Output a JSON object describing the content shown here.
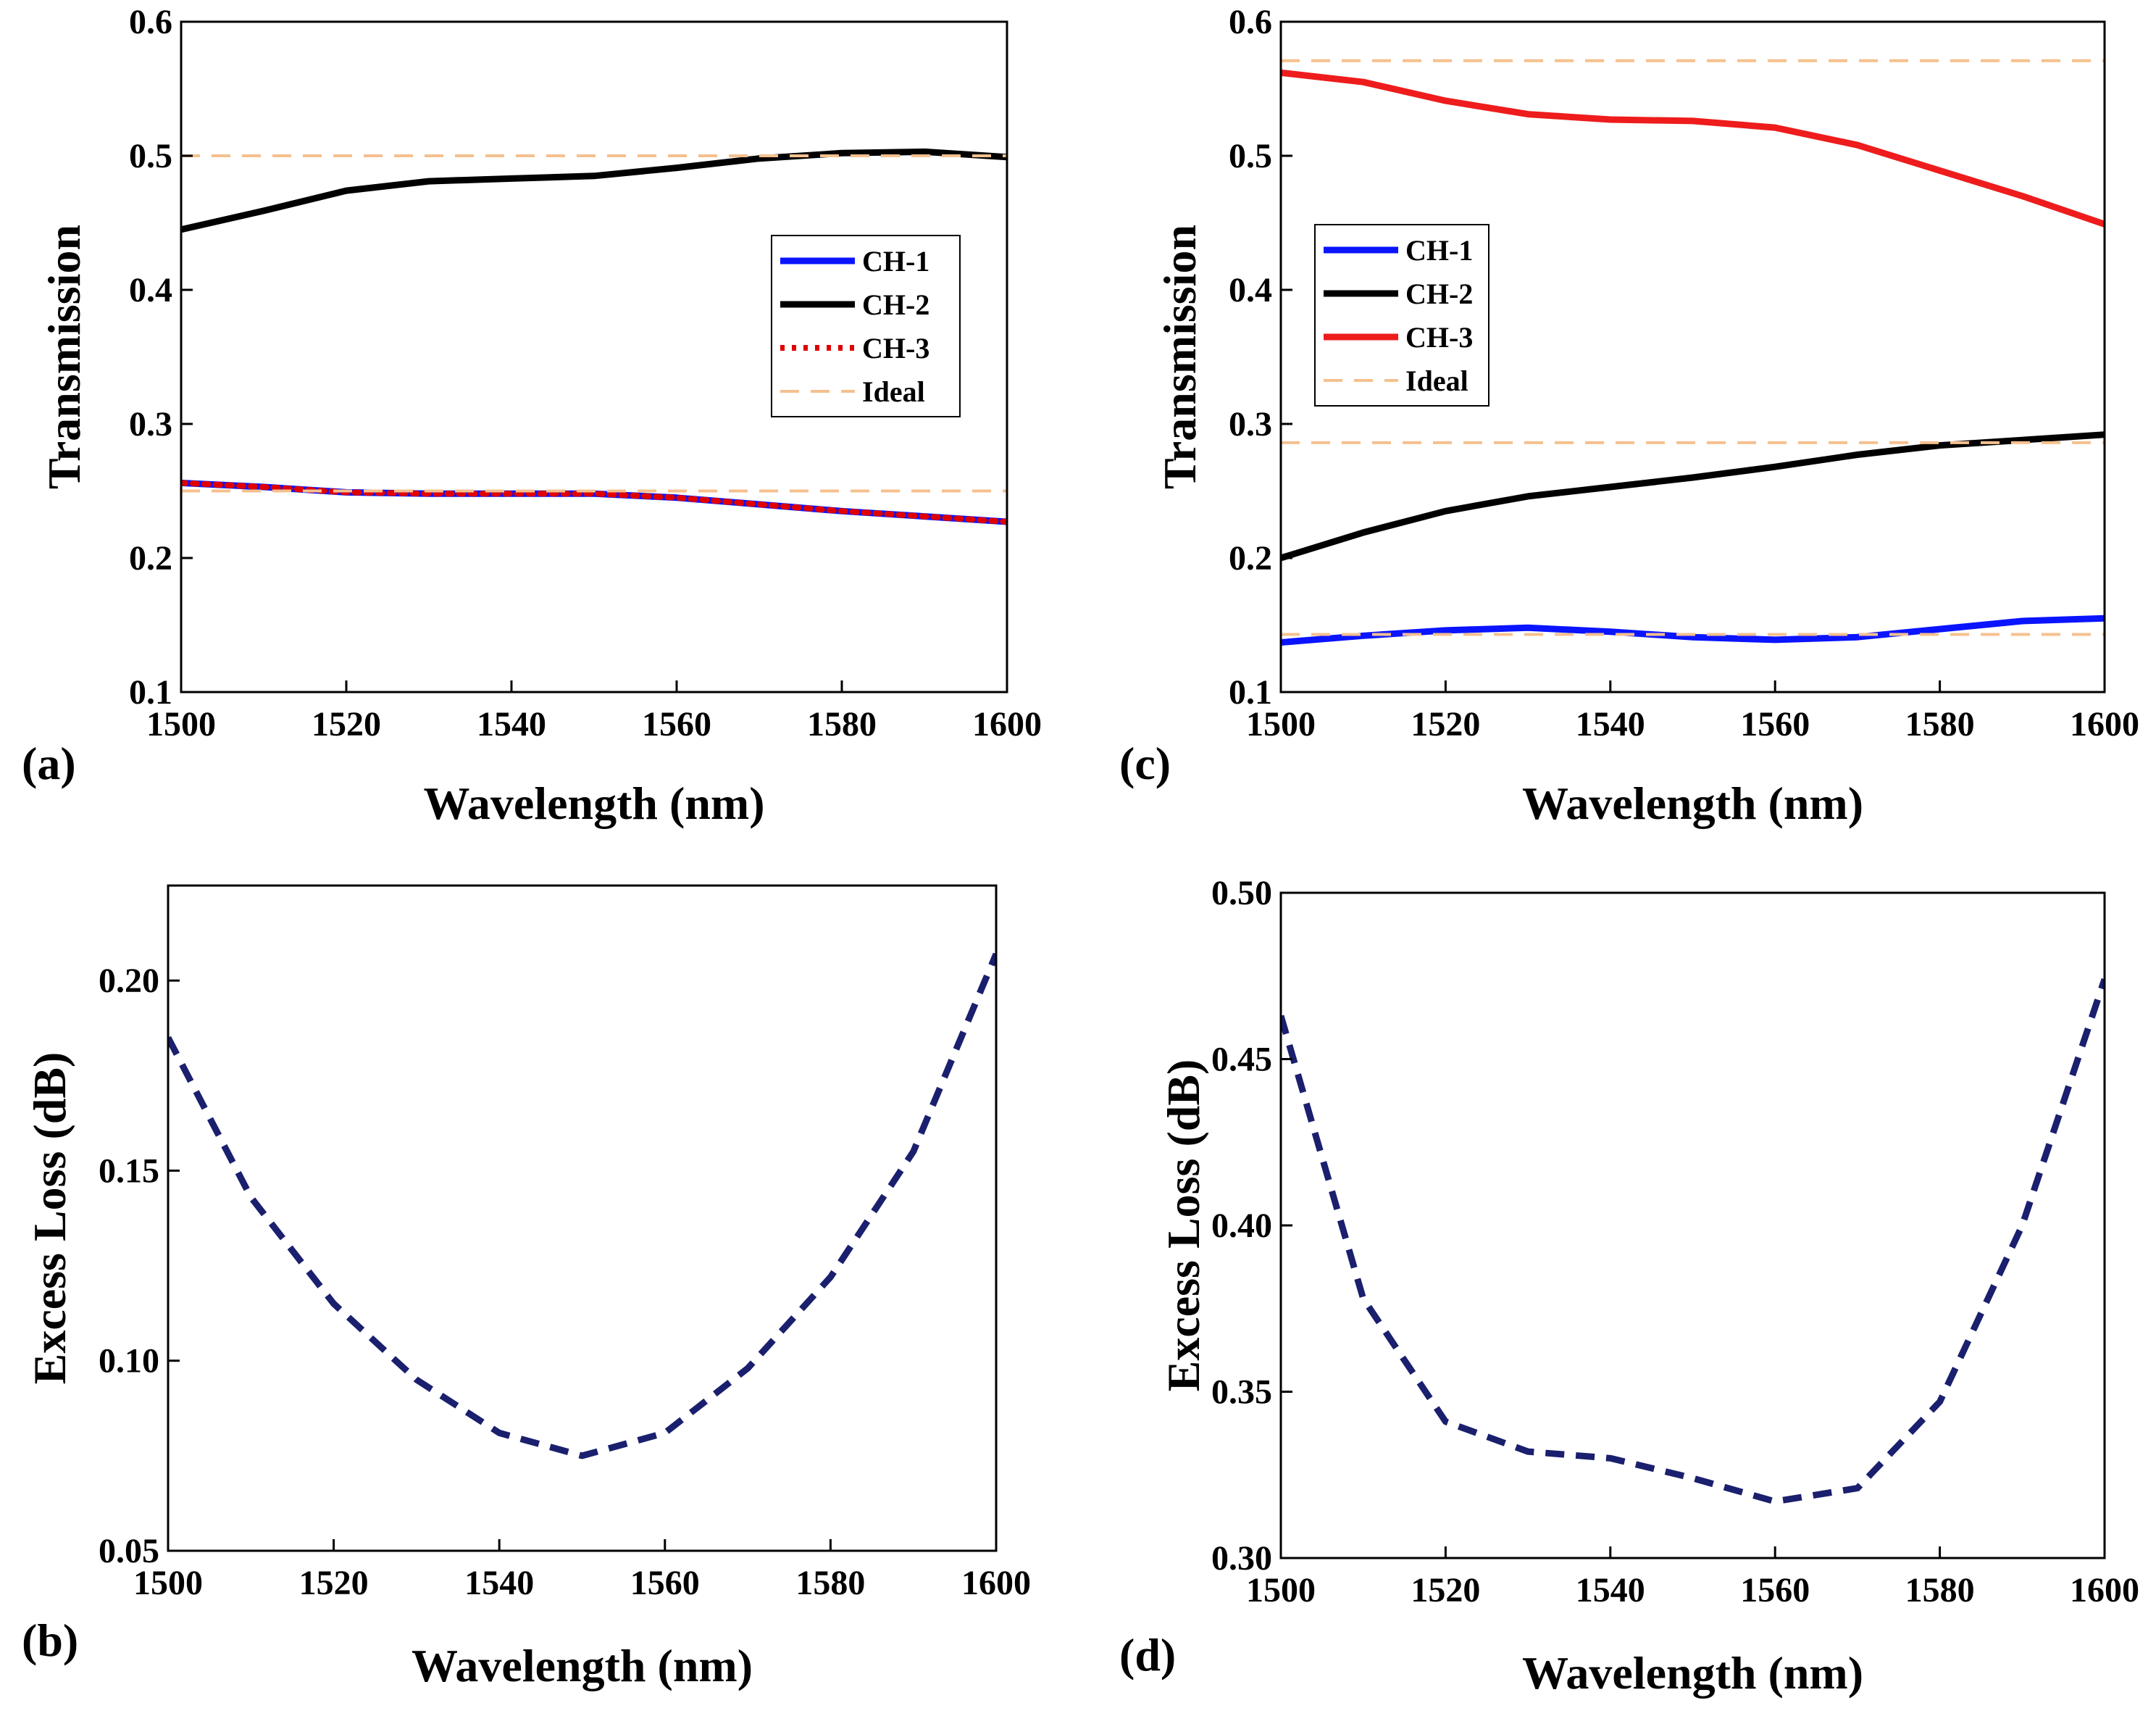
{
  "figure": {
    "panels": [
      "a",
      "b",
      "c",
      "d"
    ]
  },
  "chart_data": [
    {
      "id": "a",
      "panel_label": "(a)",
      "type": "line",
      "xlabel": "Wavelength (nm)",
      "ylabel": "Transmission",
      "xlim": [
        1500,
        1600
      ],
      "ylim": [
        0.1,
        0.6
      ],
      "xticks": [
        1500,
        1520,
        1540,
        1560,
        1580,
        1600
      ],
      "yticks": [
        0.1,
        0.2,
        0.3,
        0.4,
        0.5,
        0.6
      ],
      "xtick_labels": [
        "1500",
        "1520",
        "1540",
        "1560",
        "1580",
        "1600"
      ],
      "ytick_labels": [
        "0.1",
        "0.2",
        "0.3",
        "0.4",
        "0.5",
        "0.6"
      ],
      "legend_position": "right-middle",
      "series": [
        {
          "name": "CH-1",
          "style": "solid",
          "color": "#0a14ff",
          "x": [
            1500,
            1510,
            1520,
            1530,
            1540,
            1550,
            1560,
            1570,
            1580,
            1590,
            1600
          ],
          "y": [
            0.256,
            0.253,
            0.249,
            0.248,
            0.248,
            0.248,
            0.245,
            0.24,
            0.235,
            0.231,
            0.227
          ]
        },
        {
          "name": "CH-2",
          "style": "solid",
          "color": "#000000",
          "x": [
            1500,
            1510,
            1520,
            1530,
            1540,
            1550,
            1560,
            1570,
            1580,
            1590,
            1600
          ],
          "y": [
            0.445,
            0.459,
            0.474,
            0.481,
            0.483,
            0.485,
            0.491,
            0.498,
            0.502,
            0.503,
            0.499
          ]
        },
        {
          "name": "CH-3",
          "style": "dotted",
          "color": "#e00000",
          "x": [
            1500,
            1510,
            1520,
            1530,
            1540,
            1550,
            1560,
            1570,
            1580,
            1590,
            1600
          ],
          "y": [
            0.256,
            0.253,
            0.249,
            0.248,
            0.248,
            0.248,
            0.245,
            0.24,
            0.235,
            0.231,
            0.227
          ]
        },
        {
          "name": "Ideal",
          "style": "dashed",
          "color": "#f5c08e",
          "legend": true,
          "x": [
            1500,
            1600
          ],
          "y": [
            0.5,
            0.5
          ]
        },
        {
          "name": "Ideal",
          "style": "dashed",
          "color": "#f5c08e",
          "legend": false,
          "x": [
            1500,
            1600
          ],
          "y": [
            0.25,
            0.25
          ]
        }
      ]
    },
    {
      "id": "b",
      "panel_label": "(b)",
      "type": "line",
      "xlabel": "Wavelength (nm)",
      "ylabel": "Excess Loss (dB)",
      "xlim": [
        1500,
        1600
      ],
      "ylim": [
        0.05,
        0.225
      ],
      "xticks": [
        1500,
        1520,
        1540,
        1560,
        1580,
        1600
      ],
      "yticks": [
        0.05,
        0.1,
        0.15,
        0.2
      ],
      "xtick_labels": [
        "1500",
        "1520",
        "1540",
        "1560",
        "1580",
        "1600"
      ],
      "ytick_labels": [
        "0.05",
        "0.10",
        "0.15",
        "0.20"
      ],
      "legend_position": "none",
      "series": [
        {
          "name": "Excess Loss",
          "style": "dashed",
          "color": "#1a1f6e",
          "x": [
            1500,
            1510,
            1520,
            1530,
            1540,
            1550,
            1560,
            1570,
            1580,
            1590,
            1600
          ],
          "y": [
            0.185,
            0.143,
            0.115,
            0.095,
            0.081,
            0.075,
            0.081,
            0.098,
            0.122,
            0.155,
            0.207
          ]
        }
      ]
    },
    {
      "id": "c",
      "panel_label": "(c)",
      "type": "line",
      "xlabel": "Wavelength (nm)",
      "ylabel": "Transmission",
      "xlim": [
        1500,
        1600
      ],
      "ylim": [
        0.1,
        0.6
      ],
      "xticks": [
        1500,
        1520,
        1540,
        1560,
        1580,
        1600
      ],
      "yticks": [
        0.1,
        0.2,
        0.3,
        0.4,
        0.5,
        0.6
      ],
      "xtick_labels": [
        "1500",
        "1520",
        "1540",
        "1560",
        "1580",
        "1600"
      ],
      "ytick_labels": [
        "0.1",
        "0.2",
        "0.3",
        "0.4",
        "0.5",
        "0.6"
      ],
      "legend_position": "left-middle",
      "series": [
        {
          "name": "CH-1",
          "style": "solid",
          "color": "#0a14ff",
          "x": [
            1500,
            1510,
            1520,
            1530,
            1540,
            1550,
            1560,
            1570,
            1580,
            1590,
            1600
          ],
          "y": [
            0.137,
            0.142,
            0.146,
            0.148,
            0.145,
            0.141,
            0.139,
            0.141,
            0.147,
            0.153,
            0.155
          ]
        },
        {
          "name": "CH-2",
          "style": "solid",
          "color": "#000000",
          "x": [
            1500,
            1510,
            1520,
            1530,
            1540,
            1550,
            1560,
            1570,
            1580,
            1590,
            1600
          ],
          "y": [
            0.2,
            0.219,
            0.235,
            0.246,
            0.253,
            0.26,
            0.268,
            0.277,
            0.284,
            0.288,
            0.292
          ]
        },
        {
          "name": "CH-3",
          "style": "solid",
          "color": "#ee1c1c",
          "x": [
            1500,
            1510,
            1520,
            1530,
            1540,
            1550,
            1560,
            1570,
            1580,
            1590,
            1600
          ],
          "y": [
            0.562,
            0.555,
            0.541,
            0.531,
            0.527,
            0.526,
            0.521,
            0.508,
            0.489,
            0.47,
            0.449
          ]
        },
        {
          "name": "Ideal",
          "style": "dashed",
          "color": "#f5c08e",
          "legend": true,
          "x": [
            1500,
            1600
          ],
          "y": [
            0.571,
            0.571
          ]
        },
        {
          "name": "Ideal",
          "style": "dashed",
          "color": "#f5c08e",
          "legend": false,
          "x": [
            1500,
            1600
          ],
          "y": [
            0.286,
            0.286
          ]
        },
        {
          "name": "Ideal",
          "style": "dashed",
          "color": "#f5c08e",
          "legend": false,
          "x": [
            1500,
            1600
          ],
          "y": [
            0.143,
            0.143
          ]
        }
      ]
    },
    {
      "id": "d",
      "panel_label": "(d)",
      "type": "line",
      "xlabel": "Wavelength (nm)",
      "ylabel": "Excess Loss (dB)",
      "xlim": [
        1500,
        1600
      ],
      "ylim": [
        0.3,
        0.5
      ],
      "xticks": [
        1500,
        1520,
        1540,
        1560,
        1580,
        1600
      ],
      "yticks": [
        0.3,
        0.35,
        0.4,
        0.45,
        0.5
      ],
      "xtick_labels": [
        "1500",
        "1520",
        "1540",
        "1560",
        "1580",
        "1600"
      ],
      "ytick_labels": [
        "0.30",
        "0.35",
        "0.40",
        "0.45",
        "0.50"
      ],
      "legend_position": "none",
      "series": [
        {
          "name": "Excess Loss",
          "style": "dashed",
          "color": "#1a1f6e",
          "x": [
            1500,
            1510,
            1520,
            1530,
            1540,
            1550,
            1560,
            1570,
            1580,
            1590,
            1600
          ],
          "y": [
            0.463,
            0.378,
            0.341,
            0.332,
            0.33,
            0.324,
            0.317,
            0.321,
            0.347,
            0.4,
            0.474
          ]
        }
      ]
    }
  ]
}
